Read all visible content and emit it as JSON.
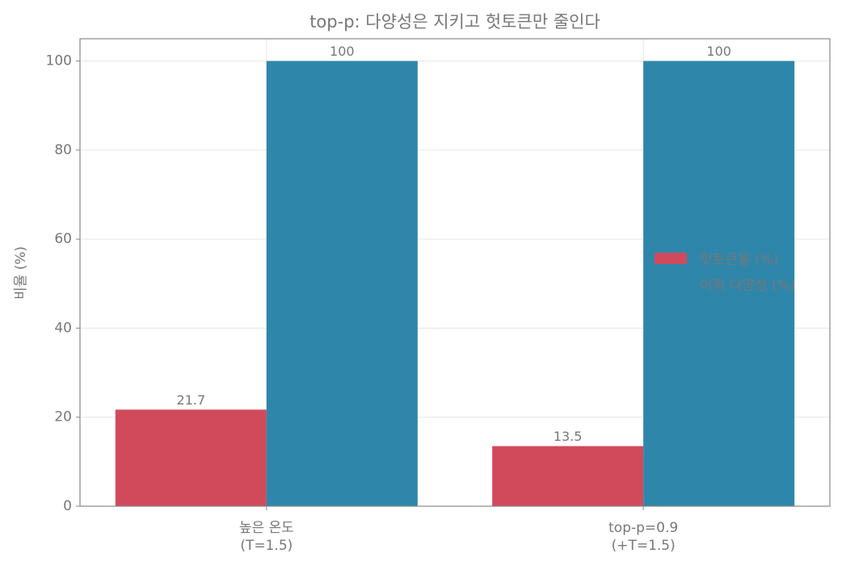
{
  "chart_data": {
    "type": "bar",
    "title": "top-p: 다양성은 지키고 헛토큰만 줄인다",
    "y_label": "비율 (%)",
    "categories": [
      "높은 온도\n(T=1.5)",
      "top-p=0.9\n(+T=1.5)"
    ],
    "series": [
      {
        "name": "헛토큰율 (%)",
        "color": "#d14a5c",
        "values": [
          21.7,
          13.5
        ]
      },
      {
        "name": "어휘 다양성 (%)",
        "color": "#2e86ab",
        "values": [
          100,
          100
        ]
      }
    ],
    "ylim": [
      0,
      105
    ],
    "yticks": [
      0,
      20,
      40,
      60,
      80,
      100
    ],
    "grid": true,
    "legend": "center right"
  }
}
